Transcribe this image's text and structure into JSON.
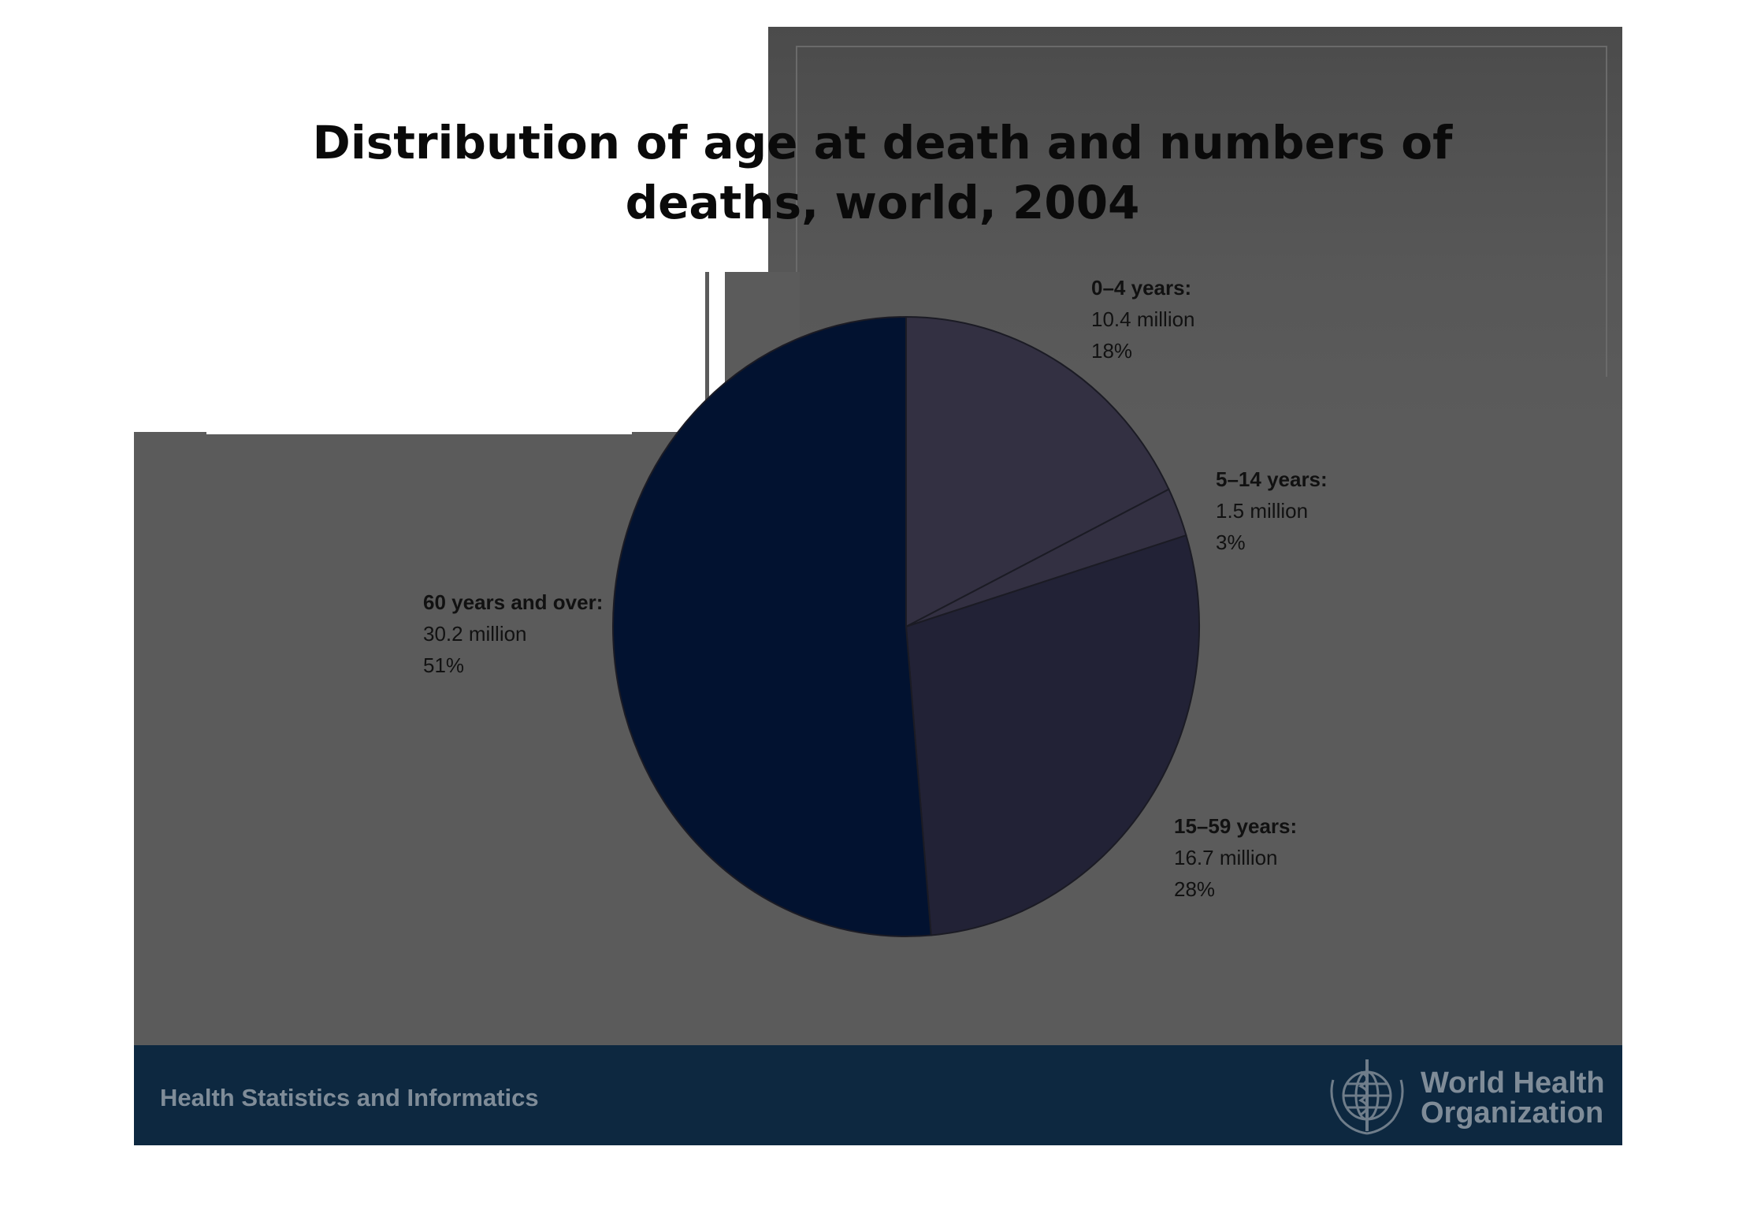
{
  "chart_data": {
    "type": "pie",
    "title": "Distribution of age at death and numbers of deaths, world, 2004",
    "title_lines": [
      "Distribution of age at death and numbers of",
      "deaths, world, 2004"
    ],
    "slices": [
      {
        "name": "0–4 years:",
        "value_label": "10.4 million",
        "percent_label": "18%",
        "value": 10.4,
        "color": "#333042"
      },
      {
        "name": "5–14 years:",
        "value_label": "1.5 million",
        "percent_label": "3%",
        "value": 1.5,
        "color": "#333042"
      },
      {
        "name": "15–59 years:",
        "value_label": "16.7 million",
        "percent_label": "28%",
        "value": 16.7,
        "color": "#222236"
      },
      {
        "name": "60 years and over:",
        "value_label": "30.2 million",
        "percent_label": "51%",
        "value": 30.2,
        "color": "#021230"
      }
    ]
  },
  "footer": {
    "text": "Health Statistics and Informatics",
    "org_line1": "World Health",
    "org_line2": "Organization",
    "background": "#0d2840",
    "text_color": "#7f8c98"
  },
  "slide": {
    "background": "#5b5b5b"
  }
}
